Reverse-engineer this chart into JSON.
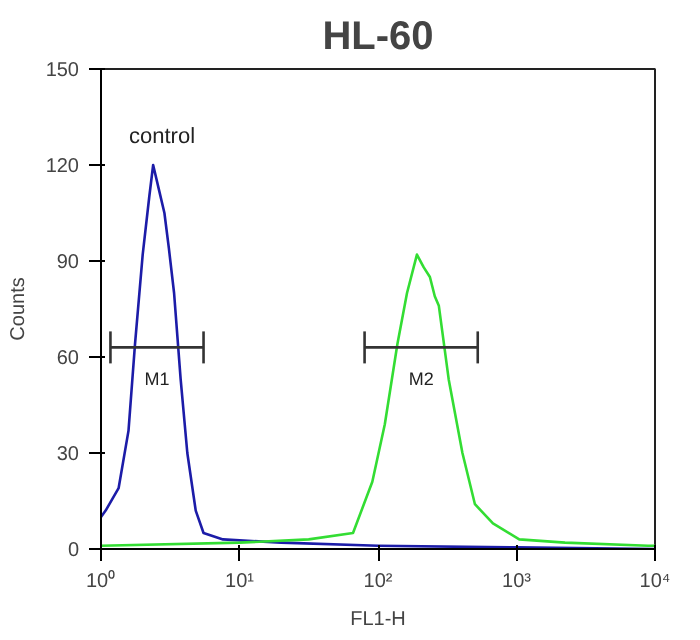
{
  "chart_data": {
    "type": "line",
    "title": "HL-60",
    "xlabel": "FL1-H",
    "ylabel": "Counts",
    "log": "x",
    "xlim": [
      1,
      10000
    ],
    "ylim": [
      0,
      150
    ],
    "xticks": [
      {
        "value": 1,
        "label": "10⁰"
      },
      {
        "value": 10,
        "label": "10¹"
      },
      {
        "value": 100,
        "label": "10²"
      },
      {
        "value": 1000,
        "label": "10³"
      },
      {
        "value": 10000,
        "label": "10⁴"
      }
    ],
    "yticks": [
      0,
      30,
      60,
      90,
      120,
      150
    ],
    "grid": false,
    "series": [
      {
        "color": "#1c1ca8",
        "x": [
          1,
          1.08,
          1.34,
          1.58,
          1.76,
          2.0,
          2.23,
          2.38,
          2.63,
          2.87,
          3.09,
          3.37,
          3.76,
          4.2,
          4.83,
          5.5,
          7.6,
          20,
          100,
          1000,
          10000
        ],
        "values": [
          10,
          12,
          19,
          37,
          64,
          92,
          110,
          120,
          112,
          105,
          94,
          80,
          53,
          30,
          12,
          5,
          3,
          2,
          1,
          0.5,
          0
        ]
      },
      {
        "color": "#33dd33",
        "x": [
          1,
          10,
          31.6,
          66,
          91,
          112,
          138,
          162,
          191,
          214,
          237,
          257,
          275,
          324,
          407,
          501,
          676,
          1047,
          2239,
          8913,
          10000
        ],
        "values": [
          1,
          2,
          3,
          5,
          21,
          39,
          64,
          80,
          92,
          88,
          85,
          79,
          76,
          53,
          30,
          14,
          8,
          3,
          2,
          1,
          1
        ]
      },
      {
        "color": "#333333",
        "x": [
          1.17,
          5.5
        ],
        "values": [
          63,
          63
        ],
        "errors": [
          5,
          5
        ]
      },
      {
        "color": "#333333",
        "x": [
          80,
          525
        ],
        "values": [
          63,
          63
        ],
        "errors": [
          5,
          5
        ]
      }
    ],
    "annotations": [
      "control",
      "M1",
      "M2"
    ]
  }
}
